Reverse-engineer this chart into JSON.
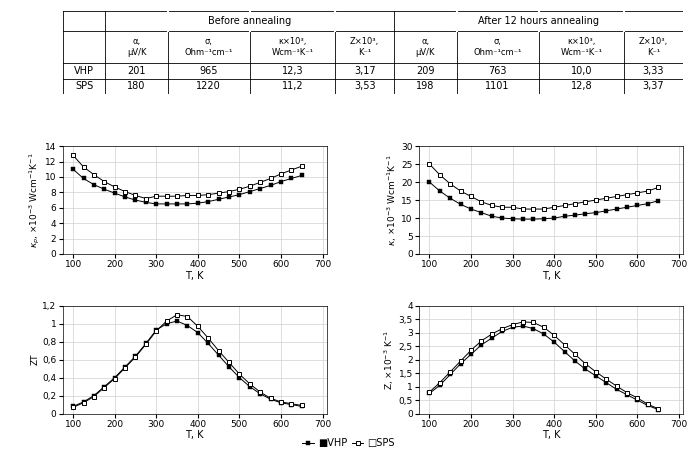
{
  "T": [
    100,
    125,
    150,
    175,
    200,
    225,
    250,
    275,
    300,
    325,
    350,
    375,
    400,
    425,
    450,
    475,
    500,
    525,
    550,
    575,
    600,
    625,
    650
  ],
  "kp_VHP": [
    11.0,
    9.8,
    9.0,
    8.4,
    7.9,
    7.4,
    7.0,
    6.7,
    6.5,
    6.5,
    6.5,
    6.5,
    6.6,
    6.8,
    7.1,
    7.4,
    7.7,
    8.1,
    8.5,
    8.9,
    9.4,
    9.8,
    10.2
  ],
  "kp_SPS": [
    12.8,
    11.3,
    10.3,
    9.4,
    8.7,
    8.1,
    7.6,
    7.2,
    7.5,
    7.5,
    7.5,
    7.6,
    7.6,
    7.7,
    7.9,
    8.1,
    8.4,
    8.8,
    9.3,
    9.8,
    10.4,
    10.9,
    11.4
  ],
  "k_VHP": [
    20.0,
    17.5,
    15.5,
    13.8,
    12.5,
    11.5,
    10.5,
    10.0,
    9.8,
    9.7,
    9.7,
    9.8,
    10.0,
    10.5,
    10.8,
    11.2,
    11.5,
    12.0,
    12.5,
    13.0,
    13.5,
    14.0,
    14.8
  ],
  "k_SPS": [
    25.0,
    22.0,
    19.5,
    17.5,
    16.0,
    14.5,
    13.5,
    13.0,
    13.0,
    12.5,
    12.5,
    12.5,
    13.0,
    13.5,
    14.0,
    14.5,
    15.0,
    15.5,
    16.0,
    16.5,
    17.0,
    17.5,
    18.5
  ],
  "ZT_VHP": [
    0.08,
    0.13,
    0.2,
    0.3,
    0.4,
    0.52,
    0.64,
    0.78,
    0.93,
    1.0,
    1.03,
    0.98,
    0.9,
    0.78,
    0.65,
    0.52,
    0.4,
    0.3,
    0.22,
    0.16,
    0.12,
    0.1,
    0.08
  ],
  "ZT_SPS": [
    0.07,
    0.12,
    0.19,
    0.29,
    0.39,
    0.51,
    0.63,
    0.77,
    0.92,
    1.03,
    1.1,
    1.08,
    0.97,
    0.84,
    0.7,
    0.57,
    0.44,
    0.33,
    0.24,
    0.17,
    0.13,
    0.11,
    0.09
  ],
  "Z_VHP": [
    0.75,
    1.05,
    1.45,
    1.85,
    2.2,
    2.55,
    2.8,
    3.05,
    3.2,
    3.25,
    3.15,
    2.95,
    2.65,
    2.3,
    1.95,
    1.65,
    1.4,
    1.15,
    0.9,
    0.7,
    0.5,
    0.3,
    0.15
  ],
  "Z_SPS": [
    0.8,
    1.15,
    1.55,
    1.95,
    2.35,
    2.7,
    2.95,
    3.15,
    3.3,
    3.4,
    3.38,
    3.2,
    2.9,
    2.55,
    2.2,
    1.85,
    1.55,
    1.28,
    1.02,
    0.78,
    0.58,
    0.35,
    0.18
  ],
  "plot1_ylabel": "$\\kappa_p$, $\\times$10$^{-3}$ Wcm$^{-1}$K$^{-1}$",
  "plot2_ylabel": "$\\kappa$, $\\times$10$^{-3}$ Wcm$^{-1}$K$^{-1}$",
  "plot3_ylabel": "ZT",
  "plot4_ylabel": "Z, $\\times$10$^{-3}$ K$^{-1}$",
  "xlabel": "T, K",
  "plot1_ylim": [
    0,
    14
  ],
  "plot2_ylim": [
    0,
    30
  ],
  "plot3_ylim": [
    0,
    1.2
  ],
  "plot4_ylim": [
    0,
    4
  ],
  "plot1_yticks": [
    0,
    2,
    4,
    6,
    8,
    10,
    12,
    14
  ],
  "plot2_yticks": [
    0,
    5,
    10,
    15,
    20,
    25,
    30
  ],
  "plot3_yticks": [
    0,
    0.2,
    0.4,
    0.6,
    0.8,
    1.0,
    1.2
  ],
  "plot3_yticklabels": [
    "0",
    "0,2",
    "0,4",
    "0,6",
    "0,8",
    "1",
    "1,2"
  ],
  "plot4_yticks": [
    0,
    0.5,
    1.0,
    1.5,
    2.0,
    2.5,
    3.0,
    3.5,
    4.0
  ],
  "plot4_yticklabels": [
    "0",
    "0,5",
    "1",
    "1,5",
    "2",
    "2,5",
    "3",
    "3,5",
    "4"
  ],
  "xlim": [
    75,
    710
  ],
  "xticks": [
    100,
    200,
    300,
    400,
    500,
    600,
    700
  ],
  "table_rows": [
    [
      "VHP",
      "201",
      "965",
      "12,3",
      "3,17",
      "209",
      "763",
      "10,0",
      "3,33"
    ],
    [
      "SPS",
      "180",
      "1220",
      "11,2",
      "3,53",
      "198",
      "1101",
      "12,8",
      "3,37"
    ]
  ],
  "legend_VHP": "VHP",
  "legend_SPS": "SPS"
}
